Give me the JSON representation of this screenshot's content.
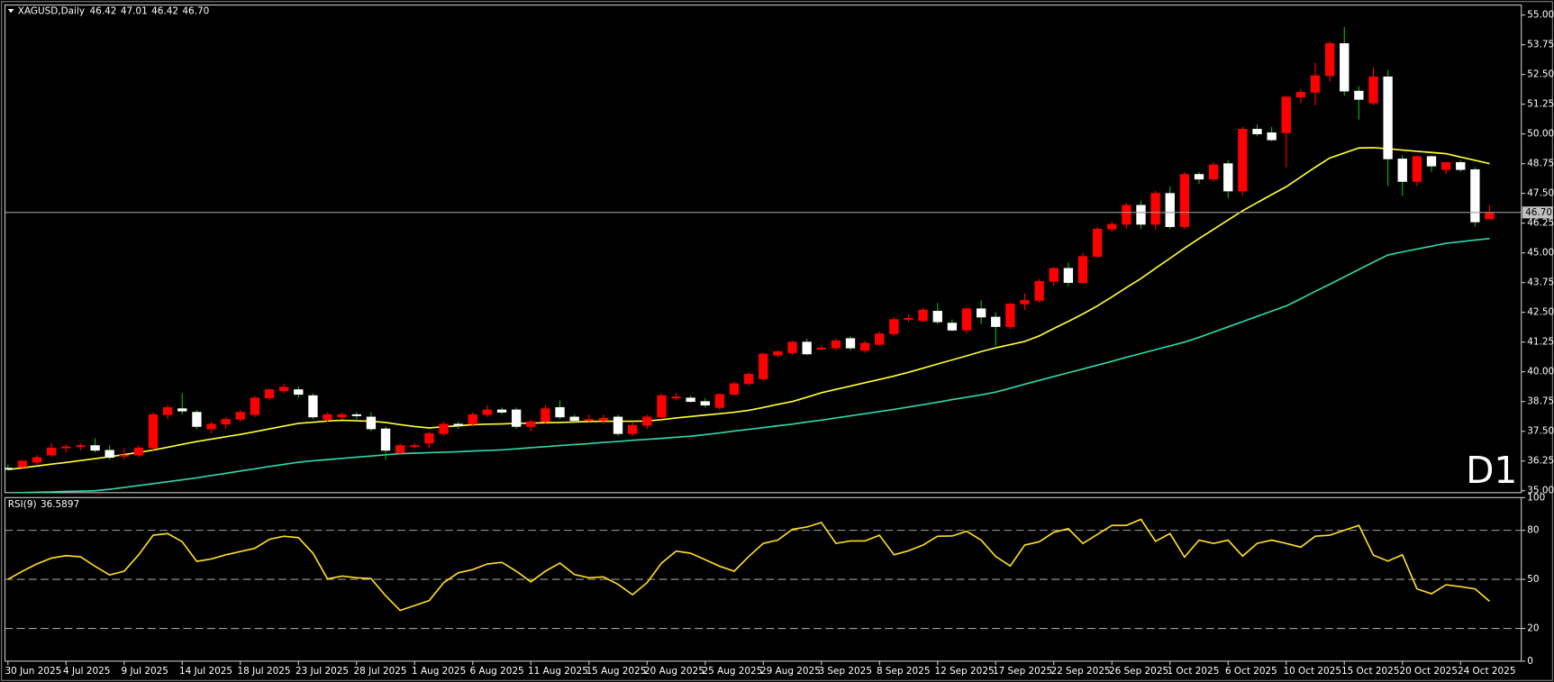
{
  "chart_data": [
    {
      "type": "candlestick",
      "header": "XAGUSD,Daily",
      "header_ohlc": [
        "46.42",
        "47.01",
        "46.42",
        "46.70"
      ],
      "categories": [
        "30 Jun 2025",
        null,
        null,
        null,
        "4 Jul 2025",
        null,
        null,
        null,
        "9 Jul 2025",
        null,
        null,
        null,
        "14 Jul 2025",
        null,
        null,
        null,
        "18 Jul 2025",
        null,
        null,
        null,
        "23 Jul 2025",
        null,
        null,
        null,
        "28 Jul 2025",
        null,
        null,
        null,
        "1 Aug 2025",
        null,
        null,
        null,
        "6 Aug 2025",
        null,
        null,
        null,
        "11 Aug 2025",
        null,
        null,
        null,
        "15 Aug 2025",
        null,
        null,
        null,
        "20 Aug 2025",
        null,
        null,
        null,
        "25 Aug 2025",
        null,
        null,
        null,
        "29 Aug 2025",
        null,
        null,
        null,
        "3 Sep 2025",
        null,
        null,
        null,
        "8 Sep 2025",
        null,
        null,
        null,
        "12 Sep 2025",
        null,
        null,
        null,
        "17 Sep 2025",
        null,
        null,
        null,
        "22 Sep 2025",
        null,
        null,
        null,
        "26 Sep 2025",
        null,
        null,
        null,
        "1 Oct 2025",
        null,
        null,
        null,
        "6 Oct 2025",
        null,
        null,
        null,
        "10 Oct 2025",
        null,
        null,
        null,
        "15 Oct 2025",
        null,
        null,
        null,
        "20 Oct 2025",
        null,
        null,
        null,
        "24 Oct 2025",
        null,
        null
      ],
      "open": [
        35.95,
        36.0,
        36.2,
        36.5,
        36.8,
        36.85,
        36.9,
        36.7,
        36.45,
        36.5,
        36.8,
        38.2,
        38.45,
        38.3,
        37.6,
        37.8,
        38.0,
        38.2,
        38.9,
        39.2,
        39.25,
        39.0,
        38.0,
        38.1,
        38.2,
        38.1,
        37.6,
        36.6,
        36.85,
        37.0,
        37.4,
        37.8,
        37.8,
        38.2,
        38.4,
        38.4,
        37.7,
        37.9,
        38.5,
        38.1,
        37.95,
        37.95,
        38.1,
        37.4,
        37.75,
        38.1,
        38.9,
        38.9,
        38.75,
        38.5,
        39.05,
        39.5,
        39.7,
        40.7,
        40.8,
        41.25,
        40.95,
        41.0,
        41.4,
        40.9,
        41.15,
        41.6,
        42.2,
        42.15,
        42.55,
        42.05,
        41.75,
        42.65,
        42.3,
        41.9,
        42.85,
        43.0,
        43.8,
        44.35,
        43.75,
        44.85,
        46.0,
        46.2,
        47.0,
        46.2,
        47.5,
        46.1,
        48.3,
        48.1,
        48.75,
        47.6,
        50.2,
        50.05,
        50.05,
        51.55,
        51.75,
        52.45,
        53.8,
        51.8,
        51.3,
        52.4,
        48.95,
        48.0,
        49.05,
        48.5,
        48.8,
        48.5,
        46.42
      ],
      "high": [
        36.1,
        36.3,
        36.5,
        37.0,
        36.95,
        37.0,
        37.2,
        36.9,
        36.8,
        36.9,
        38.3,
        38.6,
        39.1,
        38.4,
        37.9,
        38.1,
        38.4,
        39.0,
        39.3,
        39.5,
        39.4,
        39.1,
        38.3,
        38.3,
        38.3,
        38.3,
        37.7,
        37.0,
        37.0,
        37.5,
        37.9,
        37.9,
        38.3,
        38.6,
        38.5,
        38.5,
        38.0,
        38.6,
        38.8,
        38.2,
        38.2,
        38.2,
        38.2,
        37.9,
        38.2,
        39.1,
        39.1,
        39.0,
        38.9,
        39.1,
        39.6,
        40.0,
        40.8,
        40.9,
        41.3,
        41.4,
        41.1,
        41.4,
        41.5,
        41.3,
        41.7,
        42.3,
        42.4,
        42.7,
        42.9,
        42.2,
        42.7,
        43.0,
        42.5,
        42.9,
        43.3,
        43.9,
        44.4,
        44.6,
        45.0,
        46.1,
        46.3,
        47.1,
        47.2,
        47.6,
        47.8,
        48.4,
        48.4,
        48.8,
        48.9,
        50.3,
        50.4,
        50.3,
        51.6,
        51.9,
        53.0,
        53.9,
        54.5,
        52.0,
        52.8,
        52.7,
        49.1,
        49.1,
        49.1,
        48.8,
        48.9,
        48.6,
        47.01
      ],
      "low": [
        35.85,
        35.9,
        36.1,
        36.4,
        36.6,
        36.7,
        36.6,
        36.3,
        36.3,
        36.4,
        36.7,
        38.0,
        38.2,
        37.6,
        37.4,
        37.6,
        37.9,
        38.1,
        38.8,
        39.1,
        38.9,
        38.0,
        37.9,
        38.0,
        38.0,
        37.5,
        36.3,
        36.5,
        36.8,
        36.8,
        37.3,
        37.6,
        37.7,
        38.1,
        38.2,
        37.6,
        37.5,
        37.8,
        38.0,
        37.9,
        37.9,
        37.8,
        37.3,
        37.3,
        37.6,
        38.0,
        38.8,
        38.7,
        38.5,
        38.4,
        39.0,
        39.4,
        39.6,
        40.6,
        40.7,
        40.7,
        40.9,
        40.9,
        40.9,
        40.8,
        41.1,
        41.5,
        42.1,
        42.1,
        42.0,
        41.7,
        41.6,
        42.0,
        41.1,
        41.8,
        42.6,
        42.9,
        43.6,
        43.6,
        43.7,
        44.8,
        45.9,
        46.0,
        46.0,
        46.0,
        46.0,
        46.0,
        47.9,
        48.0,
        47.3,
        47.4,
        49.9,
        49.7,
        48.6,
        51.3,
        51.2,
        52.2,
        51.6,
        50.6,
        51.2,
        47.8,
        47.4,
        47.8,
        48.4,
        48.3,
        48.4,
        46.1,
        46.42
      ],
      "close": [
        35.9,
        36.25,
        36.4,
        36.8,
        36.85,
        36.9,
        36.7,
        36.4,
        36.5,
        36.8,
        38.2,
        38.5,
        38.35,
        37.7,
        37.8,
        38.0,
        38.3,
        38.9,
        39.25,
        39.35,
        39.05,
        38.1,
        38.2,
        38.2,
        38.15,
        37.6,
        36.7,
        36.9,
        36.9,
        37.4,
        37.8,
        37.75,
        38.2,
        38.4,
        38.3,
        37.7,
        37.9,
        38.45,
        38.1,
        37.95,
        38.0,
        38.05,
        37.4,
        37.75,
        38.1,
        39.0,
        38.95,
        38.75,
        38.6,
        39.05,
        39.5,
        39.9,
        40.75,
        40.85,
        41.25,
        40.75,
        41.0,
        41.3,
        41.0,
        41.2,
        41.6,
        42.2,
        42.25,
        42.6,
        42.1,
        41.75,
        42.65,
        42.3,
        41.9,
        42.85,
        43.0,
        43.8,
        44.35,
        43.75,
        44.85,
        46.0,
        46.2,
        47.0,
        46.2,
        47.5,
        46.1,
        48.3,
        48.1,
        48.7,
        47.6,
        50.2,
        50.0,
        49.75,
        51.55,
        51.75,
        52.45,
        53.8,
        51.8,
        51.45,
        52.4,
        48.95,
        48.0,
        49.05,
        48.65,
        48.8,
        48.5,
        46.3,
        46.7
      ],
      "up_color": "#ff0000",
      "down_color": "#ffffff",
      "up_wick_color": "#ff0000",
      "down_wick_color": "#00c000",
      "series": [
        {
          "color": "#ffff33",
          "values": [
            35.89,
            35.96,
            36.04,
            36.12,
            36.19,
            36.27,
            36.35,
            36.43,
            36.52,
            36.61,
            36.71,
            36.83,
            36.95,
            37.07,
            37.17,
            37.27,
            37.37,
            37.48,
            37.6,
            37.72,
            37.83,
            37.88,
            37.93,
            37.96,
            37.94,
            37.92,
            37.87,
            37.78,
            37.7,
            37.64,
            37.69,
            37.73,
            37.78,
            37.8,
            37.81,
            37.83,
            37.84,
            37.86,
            37.87,
            37.89,
            37.91,
            37.92,
            37.92,
            37.92,
            37.93,
            37.99,
            38.06,
            38.12,
            38.18,
            38.24,
            38.3,
            38.38,
            38.5,
            38.63,
            38.75,
            38.93,
            39.12,
            39.26,
            39.4,
            39.54,
            39.68,
            39.82,
            39.98,
            40.15,
            40.33,
            40.5,
            40.67,
            40.85,
            41.01,
            41.14,
            41.28,
            41.51,
            41.82,
            42.12,
            42.43,
            42.77,
            43.15,
            43.54,
            43.92,
            44.35,
            44.77,
            45.2,
            45.6,
            45.99,
            46.38,
            46.77,
            47.11,
            47.45,
            47.78,
            48.19,
            48.6,
            48.99,
            49.2,
            49.41,
            49.42,
            49.38,
            49.32,
            49.27,
            49.22,
            49.17,
            49.03,
            48.89,
            48.75
          ]
        },
        {
          "color": "#2fd8a8",
          "values": [
            34.91,
            34.92,
            34.94,
            34.95,
            34.97,
            34.98,
            35.0,
            35.06,
            35.14,
            35.22,
            35.3,
            35.38,
            35.46,
            35.54,
            35.64,
            35.73,
            35.83,
            35.92,
            36.02,
            36.11,
            36.2,
            36.26,
            36.31,
            36.36,
            36.41,
            36.46,
            36.51,
            36.56,
            36.58,
            36.6,
            36.62,
            36.64,
            36.67,
            36.69,
            36.72,
            36.76,
            36.81,
            36.85,
            36.9,
            36.94,
            36.98,
            37.03,
            37.07,
            37.12,
            37.16,
            37.2,
            37.25,
            37.29,
            37.36,
            37.43,
            37.51,
            37.58,
            37.65,
            37.73,
            37.8,
            37.89,
            37.97,
            38.06,
            38.15,
            38.24,
            38.33,
            38.42,
            38.52,
            38.62,
            38.72,
            38.83,
            38.93,
            39.03,
            39.15,
            39.31,
            39.48,
            39.64,
            39.8,
            39.96,
            40.12,
            40.28,
            40.44,
            40.61,
            40.77,
            40.93,
            41.09,
            41.25,
            41.45,
            41.67,
            41.89,
            42.11,
            42.33,
            42.55,
            42.77,
            43.07,
            43.38,
            43.68,
            43.99,
            44.3,
            44.61,
            44.91,
            45.04,
            45.16,
            45.28,
            45.4,
            45.47,
            45.54,
            45.6
          ]
        }
      ],
      "ylim": [
        34.92,
        55.42
      ],
      "yticks": [
        {
          "value": 35,
          "label": "35.00"
        },
        {
          "value": 36.25,
          "label": "36.25"
        },
        {
          "value": 37.5,
          "label": "37.50"
        },
        {
          "value": 38.75,
          "label": "38.75"
        },
        {
          "value": 40,
          "label": "40.00"
        },
        {
          "value": 41.25,
          "label": "41.25"
        },
        {
          "value": 42.5,
          "label": "42.50"
        },
        {
          "value": 43.75,
          "label": "43.75"
        },
        {
          "value": 45,
          "label": "45.00"
        },
        {
          "value": 46.25,
          "label": "46.25"
        },
        {
          "value": 47.5,
          "label": "47.50"
        },
        {
          "value": 48.75,
          "label": "48.75"
        },
        {
          "value": 50,
          "label": "50.00"
        },
        {
          "value": 51.25,
          "label": "51.25"
        },
        {
          "value": 52.5,
          "label": "52.50"
        },
        {
          "value": 53.75,
          "label": "53.75"
        },
        {
          "value": 55,
          "label": "55.00"
        }
      ],
      "current_price": {
        "value": 46.7,
        "label": "46.70"
      },
      "annotation": "D1",
      "annotation_color": "#ff0000"
    },
    {
      "type": "line",
      "title": "RSI(9)",
      "series": [
        {
          "color": "#ffdd22",
          "values": [
            50,
            55,
            59.5,
            63,
            64.5,
            63.8,
            58,
            52.7,
            55,
            65,
            77,
            78,
            73,
            61,
            62.5,
            65,
            67,
            69,
            74.5,
            76.4,
            75.5,
            66,
            50.3,
            52,
            51,
            50.5,
            40,
            31,
            34,
            37,
            48,
            54,
            56,
            59.4,
            60.4,
            55,
            48.5,
            55,
            60,
            53,
            51,
            51.5,
            47,
            40.6,
            48,
            60,
            67.3,
            66,
            62,
            58,
            55,
            64,
            72,
            74,
            80.6,
            82,
            84.8,
            72,
            73.5,
            73.5,
            77,
            65,
            67.5,
            71,
            76.4,
            76.5,
            79.4,
            74,
            64,
            58.2,
            71,
            73,
            78.8,
            81,
            72,
            77.5,
            83,
            83,
            86.7,
            73.3,
            78,
            63.6,
            74,
            72,
            74,
            64.2,
            72,
            74,
            72,
            69.7,
            76.4,
            77,
            80,
            83,
            64.8,
            61.2,
            65,
            44.2,
            41.2,
            46.7,
            45.5,
            44.2,
            36.5897
          ]
        }
      ],
      "ylim": [
        0,
        100
      ],
      "yticks": [
        100,
        80,
        50,
        20,
        0
      ]
    }
  ]
}
